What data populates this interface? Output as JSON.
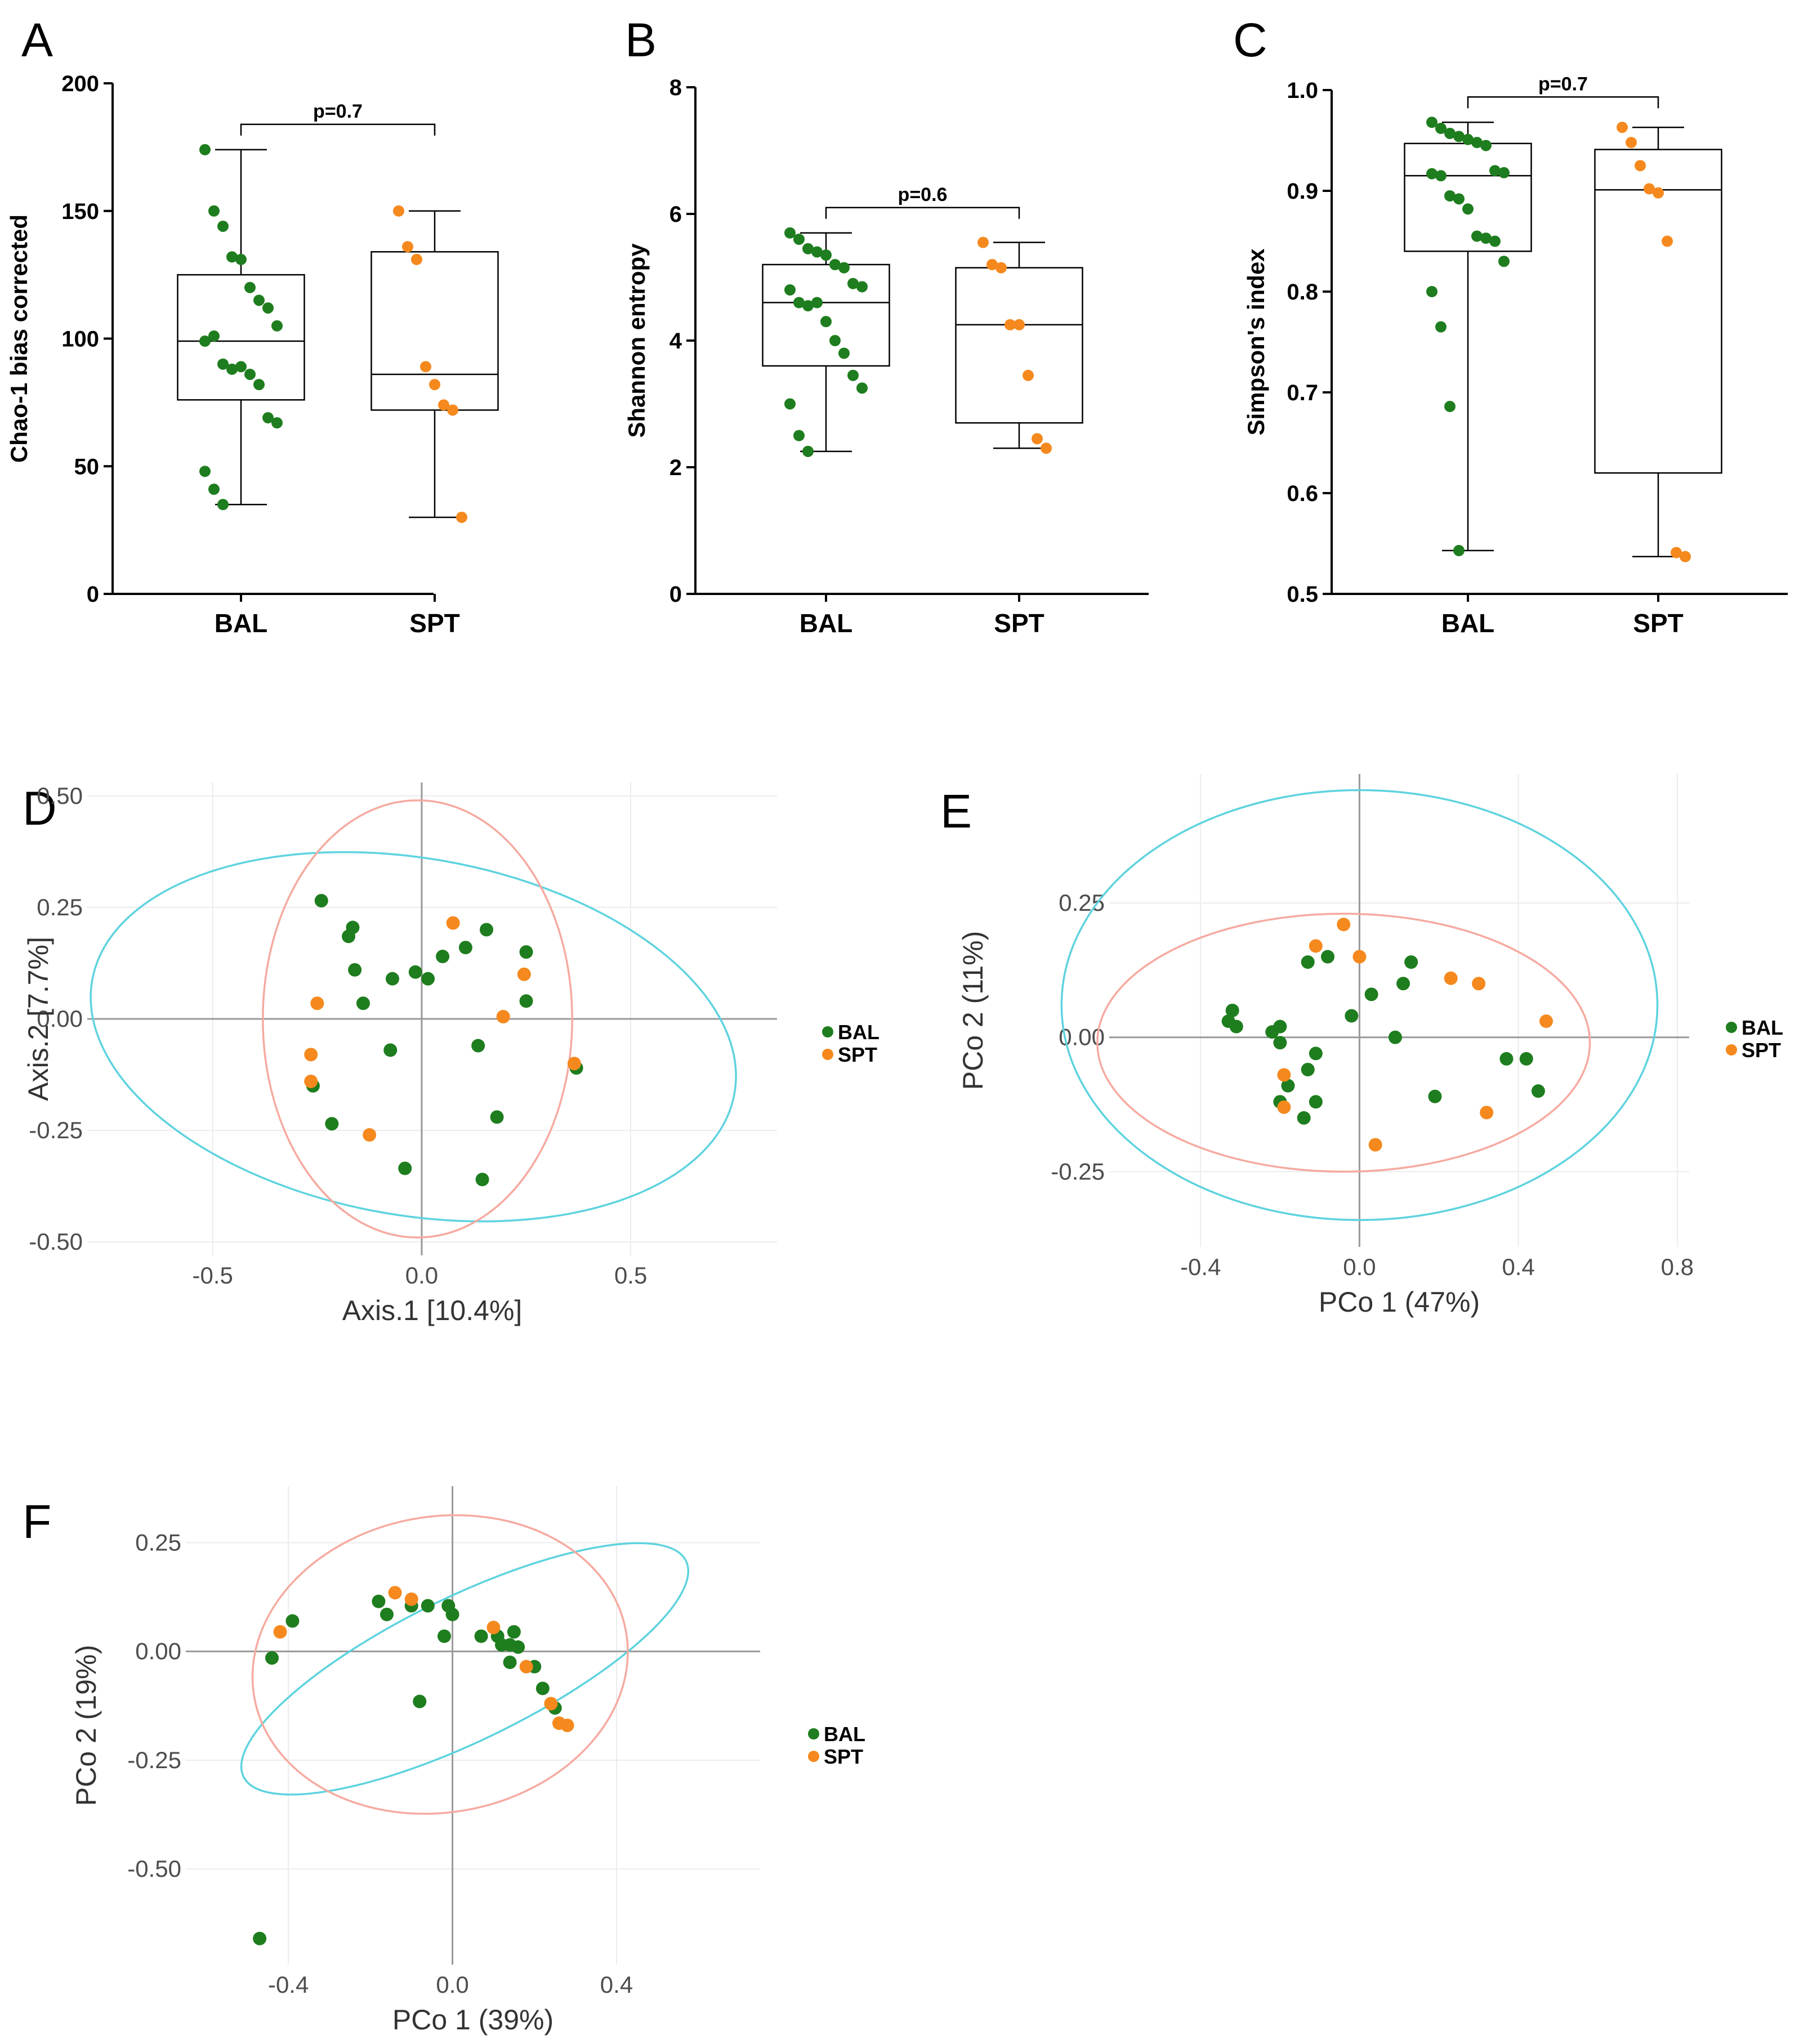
{
  "colors": {
    "bal": "#1e7d1e",
    "spt": "#f5891e",
    "ellipse_bal": "#5ed3de",
    "ellipse_spt": "#f6aaa0"
  },
  "chart_data": [
    {
      "panel": "A",
      "type": "box",
      "ylabel": "Chao-1 bias corrected",
      "ylim": [
        0,
        200
      ],
      "yticks": [
        "0",
        "50",
        "100",
        "150",
        "200"
      ],
      "categories": [
        "BAL",
        "SPT"
      ],
      "pvalue": "p=0.7",
      "boxes": [
        {
          "name": "BAL",
          "min": 35,
          "q1": 76,
          "median": 99,
          "q3": 125,
          "max": 174,
          "points": [
            174,
            150,
            144,
            132,
            131,
            120,
            115,
            112,
            105,
            99,
            101,
            90,
            88,
            89,
            86,
            82,
            69,
            67,
            48,
            41,
            35
          ]
        },
        {
          "name": "SPT",
          "min": 30,
          "q1": 72,
          "median": 86,
          "q3": 134,
          "max": 150,
          "points": [
            150,
            136,
            131,
            89,
            82,
            74,
            72,
            30
          ]
        }
      ]
    },
    {
      "panel": "B",
      "type": "box",
      "ylabel": "Shannon entropy",
      "ylim": [
        0,
        8
      ],
      "yticks": [
        "0",
        "2",
        "4",
        "6",
        "8"
      ],
      "categories": [
        "BAL",
        "SPT"
      ],
      "pvalue": "p=0.6",
      "boxes": [
        {
          "name": "BAL",
          "min": 2.25,
          "q1": 3.6,
          "median": 4.6,
          "q3": 5.2,
          "max": 5.7,
          "points": [
            5.7,
            5.6,
            5.45,
            5.4,
            5.35,
            5.2,
            5.15,
            4.9,
            4.85,
            4.8,
            4.6,
            4.55,
            4.6,
            4.3,
            4.0,
            3.8,
            3.45,
            3.25,
            3.0,
            2.5,
            2.25
          ]
        },
        {
          "name": "SPT",
          "min": 2.3,
          "q1": 2.7,
          "median": 4.25,
          "q3": 5.15,
          "max": 5.55,
          "points": [
            5.55,
            5.2,
            5.15,
            4.25,
            4.25,
            3.45,
            2.45,
            2.3
          ]
        }
      ]
    },
    {
      "panel": "C",
      "type": "box",
      "ylabel": "Simpson's index",
      "ylim": [
        0.5,
        1.0
      ],
      "yticks": [
        "0.5",
        "0.6",
        "0.7",
        "0.8",
        "0.9",
        "1.0"
      ],
      "categories": [
        "BAL",
        "SPT"
      ],
      "pvalue": "p=0.7",
      "boxes": [
        {
          "name": "BAL",
          "min": 0.543,
          "q1": 0.84,
          "median": 0.915,
          "q3": 0.947,
          "max": 0.968,
          "points": [
            0.968,
            0.962,
            0.957,
            0.954,
            0.951,
            0.948,
            0.945,
            0.92,
            0.918,
            0.917,
            0.915,
            0.895,
            0.892,
            0.882,
            0.855,
            0.853,
            0.85,
            0.83,
            0.8,
            0.765,
            0.686,
            0.543
          ]
        },
        {
          "name": "SPT",
          "min": 0.537,
          "q1": 0.62,
          "median": 0.901,
          "q3": 0.941,
          "max": 0.963,
          "points": [
            0.963,
            0.948,
            0.925,
            0.902,
            0.898,
            0.85,
            0.541,
            0.537
          ]
        }
      ]
    },
    {
      "panel": "D",
      "type": "scatter",
      "xlabel": "Axis.1   [10.4%]",
      "ylabel": "Axis.2   [7.7%]",
      "xlim": [
        -0.8,
        0.85
      ],
      "ylim": [
        -0.53,
        0.53
      ],
      "xticks": [
        -0.5,
        0.0,
        0.5
      ],
      "xtick_labels": [
        "-0.5",
        "0.0",
        "0.5"
      ],
      "yticks": [
        -0.5,
        -0.25,
        0.0,
        0.25,
        0.5
      ],
      "ytick_labels": [
        "-0.50",
        "-0.25",
        "0.00",
        "0.25",
        "0.50"
      ],
      "legend": [
        "BAL",
        "SPT"
      ],
      "series": [
        {
          "name": "BAL",
          "points": [
            [
              -0.24,
              0.265
            ],
            [
              -0.165,
              0.205
            ],
            [
              -0.175,
              0.185
            ],
            [
              -0.16,
              0.11
            ],
            [
              -0.14,
              0.035
            ],
            [
              -0.07,
              0.09
            ],
            [
              -0.015,
              0.105
            ],
            [
              0.015,
              0.09
            ],
            [
              0.05,
              0.14
            ],
            [
              0.105,
              0.16
            ],
            [
              0.155,
              0.2
            ],
            [
              0.25,
              0.15
            ],
            [
              0.25,
              0.04
            ],
            [
              0.135,
              -0.06
            ],
            [
              0.18,
              -0.22
            ],
            [
              0.145,
              -0.36
            ],
            [
              -0.075,
              -0.07
            ],
            [
              -0.04,
              -0.335
            ],
            [
              -0.215,
              -0.235
            ],
            [
              -0.26,
              -0.15
            ],
            [
              0.37,
              -0.11
            ]
          ]
        },
        {
          "name": "SPT",
          "points": [
            [
              0.075,
              0.215
            ],
            [
              0.245,
              0.1
            ],
            [
              0.195,
              0.005
            ],
            [
              0.365,
              -0.1
            ],
            [
              -0.25,
              0.035
            ],
            [
              -0.265,
              -0.08
            ],
            [
              -0.265,
              -0.14
            ],
            [
              -0.125,
              -0.26
            ]
          ]
        }
      ],
      "ellipses": [
        "BAL",
        "SPT"
      ]
    },
    {
      "panel": "E",
      "type": "scatter",
      "xlabel": "PCo 1 (47%)",
      "ylabel": "PCo 2 (11%)",
      "xlim": [
        -0.63,
        0.83
      ],
      "ylim": [
        -0.39,
        0.49
      ],
      "xticks": [
        -0.4,
        0.0,
        0.4,
        0.8
      ],
      "xtick_labels": [
        "-0.4",
        "0.0",
        "0.4",
        "0.8"
      ],
      "yticks": [
        -0.25,
        0.0,
        0.25
      ],
      "ytick_labels": [
        "-0.25",
        "0.00",
        "0.25"
      ],
      "legend": [
        "BAL",
        "SPT"
      ],
      "series": [
        {
          "name": "BAL",
          "points": [
            [
              -0.33,
              0.03
            ],
            [
              -0.32,
              0.05
            ],
            [
              -0.31,
              0.02
            ],
            [
              -0.22,
              0.01
            ],
            [
              -0.2,
              0.02
            ],
            [
              -0.2,
              -0.01
            ],
            [
              -0.18,
              -0.09
            ],
            [
              -0.2,
              -0.12
            ],
            [
              -0.14,
              -0.15
            ],
            [
              -0.13,
              -0.06
            ],
            [
              -0.11,
              -0.03
            ],
            [
              -0.11,
              -0.12
            ],
            [
              -0.13,
              0.14
            ],
            [
              -0.08,
              0.15
            ],
            [
              -0.02,
              0.04
            ],
            [
              0.03,
              0.08
            ],
            [
              0.09,
              0.0
            ],
            [
              0.11,
              0.1
            ],
            [
              0.13,
              0.14
            ],
            [
              0.19,
              -0.11
            ],
            [
              0.37,
              -0.04
            ],
            [
              0.42,
              -0.04
            ],
            [
              0.45,
              -0.1
            ]
          ]
        },
        {
          "name": "SPT",
          "points": [
            [
              -0.04,
              0.21
            ],
            [
              -0.11,
              0.17
            ],
            [
              0.0,
              0.15
            ],
            [
              0.23,
              0.11
            ],
            [
              0.3,
              0.1
            ],
            [
              0.47,
              0.03
            ],
            [
              -0.19,
              -0.07
            ],
            [
              -0.19,
              -0.13
            ],
            [
              0.04,
              -0.2
            ],
            [
              0.32,
              -0.14
            ]
          ]
        }
      ],
      "ellipses": [
        "BAL",
        "SPT"
      ]
    },
    {
      "panel": "F",
      "type": "scatter",
      "xlabel": "PCo 1 (39%)",
      "ylabel": "PCo 2 (19%)",
      "xlim": [
        -0.65,
        0.75
      ],
      "ylim": [
        -0.72,
        0.38
      ],
      "xticks": [
        -0.4,
        0.0,
        0.4
      ],
      "xtick_labels": [
        "-0.4",
        "0.0",
        "0.4"
      ],
      "yticks": [
        -0.5,
        -0.25,
        0.0,
        0.25
      ],
      "ytick_labels": [
        "-0.50",
        "-0.25",
        "0.00",
        "0.25"
      ],
      "legend": [
        "BAL",
        "SPT"
      ],
      "series": [
        {
          "name": "BAL",
          "points": [
            [
              -0.47,
              -0.66
            ],
            [
              -0.44,
              -0.015
            ],
            [
              -0.39,
              0.07
            ],
            [
              -0.18,
              0.115
            ],
            [
              -0.16,
              0.085
            ],
            [
              -0.1,
              0.105
            ],
            [
              -0.06,
              0.105
            ],
            [
              -0.02,
              0.035
            ],
            [
              -0.01,
              0.105
            ],
            [
              0.0,
              0.085
            ],
            [
              0.07,
              0.035
            ],
            [
              0.11,
              0.035
            ],
            [
              0.12,
              0.015
            ],
            [
              0.14,
              0.015
            ],
            [
              0.14,
              -0.025
            ],
            [
              0.15,
              0.045
            ],
            [
              0.16,
              0.01
            ],
            [
              0.2,
              -0.035
            ],
            [
              0.22,
              -0.085
            ],
            [
              0.25,
              -0.13
            ],
            [
              -0.08,
              -0.115
            ]
          ]
        },
        {
          "name": "SPT",
          "points": [
            [
              -0.42,
              0.045
            ],
            [
              -0.14,
              0.135
            ],
            [
              -0.1,
              0.12
            ],
            [
              0.1,
              0.055
            ],
            [
              0.18,
              -0.035
            ],
            [
              0.24,
              -0.12
            ],
            [
              0.26,
              -0.165
            ],
            [
              0.28,
              -0.17
            ]
          ]
        }
      ],
      "ellipses": [
        "BAL",
        "SPT"
      ]
    }
  ],
  "ellipse_params": [
    {
      "panel": "D",
      "BAL": {
        "cx": -0.02,
        "cy": -0.04,
        "rx": 0.78,
        "ry": 0.4,
        "angle": 10
      },
      "SPT": {
        "cx": -0.01,
        "cy": 0.0,
        "rx": 0.37,
        "ry": 0.49,
        "angle": 0
      }
    },
    {
      "panel": "E",
      "BAL": {
        "cx": 0.0,
        "cy": 0.06,
        "rx": 0.75,
        "ry": 0.4,
        "angle": 0
      },
      "SPT": {
        "cx": -0.04,
        "cy": -0.01,
        "rx": 0.62,
        "ry": 0.24,
        "angle": 0
      }
    },
    {
      "panel": "F",
      "BAL": {
        "cx": 0.03,
        "cy": -0.04,
        "rx": 0.6,
        "ry": 0.165,
        "angle": -26
      },
      "SPT": {
        "cx": -0.03,
        "cy": -0.03,
        "rx": 0.46,
        "ry": 0.34,
        "angle": -10
      }
    }
  ]
}
